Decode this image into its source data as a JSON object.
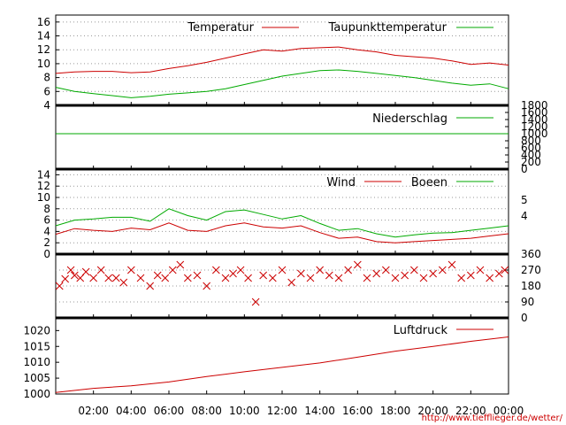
{
  "footer": {
    "url": "http://www.tiefflieger.de/wetter/"
  },
  "x_ticks": [
    "02:00",
    "04:00",
    "06:00",
    "08:00",
    "10:00",
    "12:00",
    "14:00",
    "16:00",
    "18:00",
    "20:00",
    "22:00",
    "00:00"
  ],
  "colors": {
    "red": "#cc0000",
    "green": "#00aa00",
    "grid": "#999999",
    "axis": "#000000"
  },
  "chart_data": [
    {
      "type": "line",
      "panel": "temperature",
      "ylim": [
        4,
        17
      ],
      "y_ticks": [
        "4",
        "6",
        "8",
        "10",
        "12",
        "14",
        "16"
      ],
      "x_hours": [
        0,
        1,
        2,
        3,
        4,
        5,
        6,
        7,
        8,
        9,
        10,
        11,
        12,
        13,
        14,
        15,
        16,
        17,
        18,
        19,
        20,
        21,
        22,
        23,
        24
      ],
      "series": [
        {
          "name": "Temperatur",
          "color": "#cc0000",
          "values": [
            8.6,
            8.8,
            8.9,
            8.9,
            8.7,
            8.8,
            9.3,
            9.7,
            10.2,
            10.8,
            11.4,
            12.0,
            11.8,
            12.2,
            12.3,
            12.4,
            12.0,
            11.7,
            11.2,
            11.0,
            10.8,
            10.4,
            9.9,
            10.1,
            9.8
          ]
        },
        {
          "name": "Taupunkttemperatur",
          "color": "#00aa00",
          "values": [
            6.6,
            6.0,
            5.7,
            5.4,
            5.1,
            5.3,
            5.6,
            5.8,
            6.0,
            6.4,
            7.0,
            7.6,
            8.2,
            8.6,
            9.0,
            9.1,
            8.9,
            8.6,
            8.3,
            8.0,
            7.6,
            7.2,
            6.9,
            7.1,
            6.4
          ]
        }
      ]
    },
    {
      "type": "line",
      "panel": "precipitation",
      "ylim": [
        0,
        1800
      ],
      "y_ticks_right": [
        "0",
        "200",
        "400",
        "600",
        "800",
        "1000",
        "1200",
        "1400",
        "1600",
        "1800"
      ],
      "x_hours": [
        0,
        24
      ],
      "series": [
        {
          "name": "Niederschlag",
          "color": "#00aa00",
          "values": [
            1000,
            1000
          ]
        }
      ]
    },
    {
      "type": "line",
      "panel": "wind",
      "ylim": [
        0,
        15
      ],
      "y_ticks": [
        "0",
        "2",
        "4",
        "6",
        "8",
        "10",
        "12",
        "14"
      ],
      "y_ticks_right": [
        "4",
        "5"
      ],
      "x_hours": [
        0,
        1,
        2,
        3,
        4,
        5,
        6,
        7,
        8,
        9,
        10,
        11,
        12,
        13,
        14,
        15,
        16,
        17,
        18,
        19,
        20,
        21,
        22,
        23,
        24
      ],
      "series": [
        {
          "name": "Wind",
          "color": "#cc0000",
          "values": [
            3.5,
            4.5,
            4.2,
            4.0,
            4.6,
            4.3,
            5.5,
            4.2,
            4.0,
            5.0,
            5.5,
            4.8,
            4.6,
            5.0,
            3.8,
            2.8,
            3.0,
            2.2,
            2.0,
            2.2,
            2.4,
            2.6,
            2.8,
            3.2,
            3.6
          ]
        },
        {
          "name": "Boeen",
          "color": "#00aa00",
          "values": [
            5.0,
            6.0,
            6.2,
            6.5,
            6.5,
            5.8,
            8.0,
            6.8,
            6.0,
            7.5,
            7.8,
            7.0,
            6.2,
            6.8,
            5.4,
            4.2,
            4.5,
            3.6,
            3.0,
            3.4,
            3.7,
            3.8,
            4.2,
            4.6,
            5.0
          ]
        }
      ]
    },
    {
      "type": "scatter",
      "panel": "wind-direction",
      "ylim": [
        0,
        360
      ],
      "y_ticks_right": [
        "0",
        "90",
        "180",
        "270",
        "360"
      ],
      "x_hours": [
        0.2,
        0.5,
        0.8,
        1.0,
        1.3,
        1.6,
        2.0,
        2.4,
        2.8,
        3.2,
        3.6,
        4.0,
        4.5,
        5.0,
        5.4,
        5.8,
        6.2,
        6.6,
        7.0,
        7.5,
        8.0,
        8.5,
        9.0,
        9.4,
        9.8,
        10.2,
        10.6,
        11.0,
        11.5,
        12.0,
        12.5,
        13.0,
        13.5,
        14.0,
        14.5,
        15.0,
        15.5,
        16.0,
        16.5,
        17.0,
        17.5,
        18.0,
        18.5,
        19.0,
        19.5,
        20.0,
        20.5,
        21.0,
        21.5,
        22.0,
        22.5,
        23.0,
        23.5,
        23.8
      ],
      "series": [
        {
          "name": "",
          "color": "#cc0000",
          "values": [
            180,
            220,
            270,
            240,
            225,
            260,
            225,
            270,
            225,
            225,
            200,
            270,
            225,
            180,
            240,
            225,
            270,
            300,
            225,
            240,
            180,
            270,
            225,
            250,
            270,
            225,
            90,
            240,
            225,
            270,
            200,
            250,
            225,
            270,
            240,
            225,
            270,
            300,
            225,
            250,
            270,
            225,
            240,
            270,
            225,
            250,
            270,
            300,
            225,
            240,
            270,
            225,
            250,
            270
          ]
        },
        {
          "name": "",
          "color": "#00aa00",
          "values": []
        }
      ]
    },
    {
      "type": "line",
      "panel": "pressure",
      "ylim": [
        1000,
        1024
      ],
      "y_ticks": [
        "1000",
        "1005",
        "1010",
        "1015",
        "1020"
      ],
      "x_hours": [
        0,
        2,
        4,
        6,
        8,
        10,
        12,
        14,
        16,
        18,
        20,
        22,
        24
      ],
      "series": [
        {
          "name": "Luftdruck",
          "color": "#cc0000",
          "values": [
            1000.5,
            1001.8,
            1002.6,
            1003.8,
            1005.5,
            1007.0,
            1008.4,
            1009.8,
            1011.6,
            1013.5,
            1015.0,
            1016.6,
            1018.0
          ]
        }
      ]
    }
  ]
}
